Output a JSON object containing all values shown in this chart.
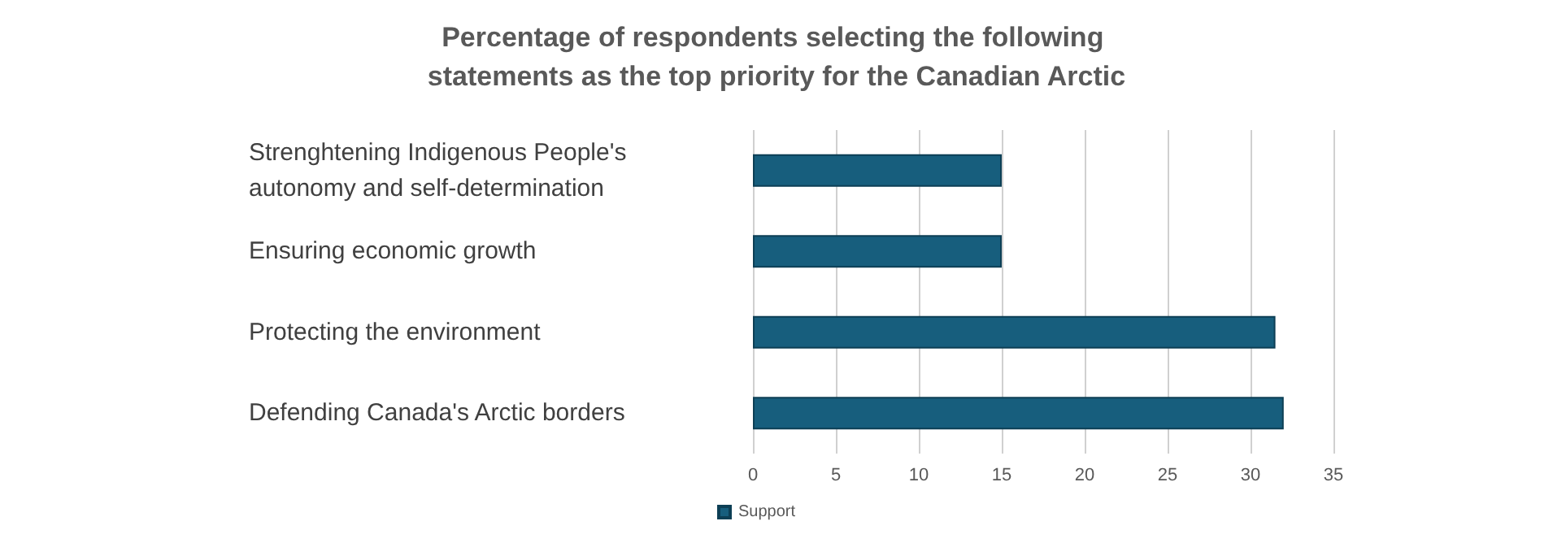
{
  "chart_data": {
    "type": "bar",
    "orientation": "horizontal",
    "title": "Percentage of respondents selecting the following statements as the top priority for the Canadian Arctic",
    "categories": [
      "Strenghtening Indigenous People's autonomy and self-determination",
      "Ensuring economic growth",
      "Protecting the environment",
      "Defending Canada's Arctic borders"
    ],
    "series": [
      {
        "name": "Support",
        "color": "#175e7d",
        "values": [
          15,
          15,
          31.5,
          32
        ]
      }
    ],
    "xlim": [
      0,
      35
    ],
    "xticks": [
      0,
      5,
      10,
      15,
      20,
      25,
      30,
      35
    ],
    "grid": "x",
    "legend": "bottom left"
  }
}
